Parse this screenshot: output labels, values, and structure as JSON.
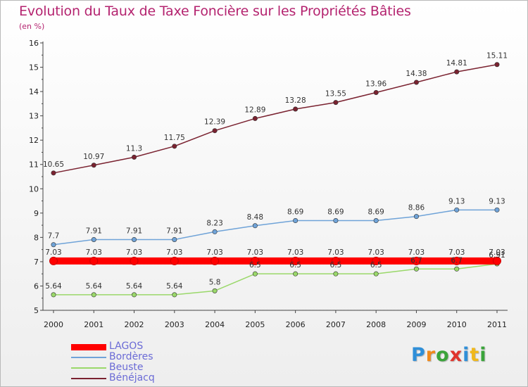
{
  "title": "Evolution du Taux de Taxe Foncière sur les Propriétés Bâties",
  "subtitle": "(en %)",
  "brand": {
    "letters": [
      "P",
      "r",
      "o",
      "x",
      "i",
      "t",
      "i"
    ],
    "colors": [
      "#2f8fd8",
      "#f08a1c",
      "#3aa43a",
      "#e0342c",
      "#2f8fd8",
      "#f0b81c",
      "#3aa43a"
    ]
  },
  "chart_data": {
    "type": "line",
    "x": [
      "2000",
      "2001",
      "2002",
      "2003",
      "2004",
      "2005",
      "2006",
      "2007",
      "2008",
      "2009",
      "2010",
      "2011"
    ],
    "ylim": [
      5,
      16
    ],
    "yticks": [
      "5",
      "6",
      "7",
      "8",
      "9",
      "10",
      "11",
      "12",
      "13",
      "14",
      "15",
      "16"
    ],
    "grid": false,
    "legend_position": "bottom-left",
    "series": [
      {
        "name": "LAGOS",
        "color": "#ff0000",
        "values": [
          7.03,
          7.03,
          7.03,
          7.03,
          7.03,
          7.03,
          7.03,
          7.03,
          7.03,
          7.03,
          7.03,
          7.03
        ],
        "labels": [
          "7.03",
          "7.03",
          "7.03",
          "7.03",
          "7.03",
          "7.03",
          "7.03",
          "7.03",
          "7.03",
          "7.03",
          "7.03",
          "7.03"
        ]
      },
      {
        "name": "Bordères",
        "color": "#6fa3d8",
        "values": [
          7.7,
          7.91,
          7.91,
          7.91,
          8.23,
          8.48,
          8.69,
          8.69,
          8.69,
          8.86,
          9.13,
          9.13
        ],
        "labels": [
          "7.7",
          "7.91",
          "7.91",
          "7.91",
          "8.23",
          "8.48",
          "8.69",
          "8.69",
          "8.69",
          "8.86",
          "9.13",
          "9.13"
        ]
      },
      {
        "name": "Beuste",
        "color": "#9ad86a",
        "values": [
          5.64,
          5.64,
          5.64,
          5.64,
          5.8,
          6.5,
          6.5,
          6.5,
          6.5,
          6.7,
          6.7,
          6.91
        ],
        "labels": [
          "5.64",
          "5.64",
          "5.64",
          "5.64",
          "5.8",
          "6.5",
          "6.5",
          "6.5",
          "6.5",
          "6.7",
          "6.7",
          "6.91"
        ]
      },
      {
        "name": "Bénéjacq",
        "color": "#7a2230",
        "values": [
          10.65,
          10.97,
          11.3,
          11.75,
          12.39,
          12.89,
          13.28,
          13.55,
          13.96,
          14.38,
          14.81,
          15.11
        ],
        "labels": [
          "10.65",
          "10.97",
          "11.3",
          "11.75",
          "12.39",
          "12.89",
          "13.28",
          "13.55",
          "13.96",
          "14.38",
          "14.81",
          "15.11"
        ]
      }
    ]
  }
}
